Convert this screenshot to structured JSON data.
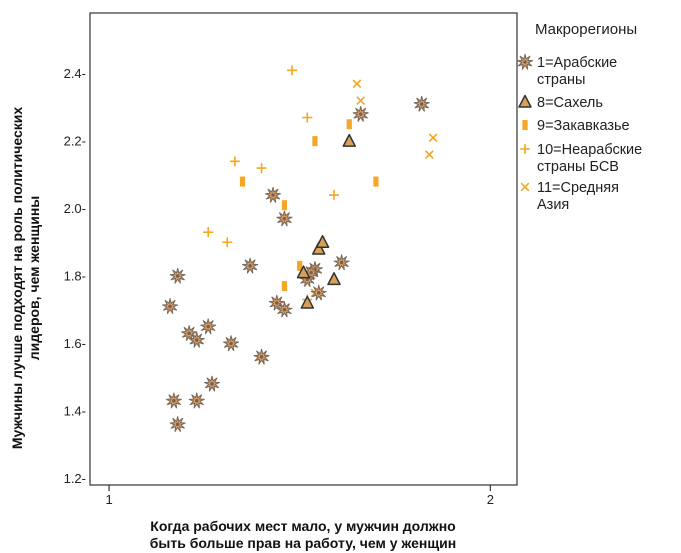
{
  "chart_data": {
    "type": "scatter",
    "title": "",
    "xlabel_lines": [
      "Когда рабочих мест мало, у мужчин должно",
      "быть больше прав на работу, чем у женщин"
    ],
    "ylabel_lines": [
      "Мужчины лучше подходят на роль политических",
      "лидеров, чем женщины"
    ],
    "xlim": [
      0.95,
      2.07
    ],
    "ylim": [
      1.18,
      2.58
    ],
    "xticks": [
      1,
      2
    ],
    "xtick_labels": [
      "1",
      "2"
    ],
    "yticks": [
      1.2,
      1.4,
      1.6,
      1.8,
      2.0,
      2.2,
      2.4
    ],
    "ytick_labels": [
      "1.2-",
      "1.4-",
      "1.6-",
      "1.8-",
      "2.0-",
      "2.2-",
      "2.4-"
    ],
    "grid": false,
    "legend": {
      "title": "Макрорегионы",
      "position": "right",
      "items": [
        {
          "series": 0,
          "lines": [
            "1=Арабские",
            "страны"
          ]
        },
        {
          "series": 1,
          "lines": [
            "8=Сахель"
          ]
        },
        {
          "series": 2,
          "lines": [
            "9=Закавказье"
          ]
        },
        {
          "series": 3,
          "lines": [
            "10=Неарабские",
            "страны БСВ"
          ]
        },
        {
          "series": 4,
          "lines": [
            "11=Средняя",
            "Азия"
          ]
        }
      ]
    },
    "colors": {
      "arab_fill": "#e8a060",
      "arab_stroke": "#7a6a5a",
      "sahel_fill": "#d9a05a",
      "sahel_stroke": "#333333",
      "orange": "#f5a623",
      "axis": "#333333"
    },
    "series": [
      {
        "name": "1=Арабские страны",
        "marker": "star",
        "points": [
          [
            1.18,
            1.36
          ],
          [
            1.17,
            1.43
          ],
          [
            1.23,
            1.43
          ],
          [
            1.27,
            1.48
          ],
          [
            1.16,
            1.71
          ],
          [
            1.21,
            1.63
          ],
          [
            1.23,
            1.61
          ],
          [
            1.26,
            1.65
          ],
          [
            1.32,
            1.6
          ],
          [
            1.4,
            1.56
          ],
          [
            1.18,
            1.8
          ],
          [
            1.37,
            1.83
          ],
          [
            1.44,
            1.72
          ],
          [
            1.46,
            1.7
          ],
          [
            1.43,
            2.04
          ],
          [
            1.46,
            1.97
          ],
          [
            1.52,
            1.79
          ],
          [
            1.54,
            1.82
          ],
          [
            1.53,
            1.81
          ],
          [
            1.55,
            1.75
          ],
          [
            1.61,
            1.84
          ],
          [
            1.66,
            2.28
          ],
          [
            1.82,
            2.31
          ]
        ]
      },
      {
        "name": "8=Сахель",
        "marker": "triangle",
        "points": [
          [
            1.55,
            1.88
          ],
          [
            1.56,
            1.9
          ],
          [
            1.63,
            2.2
          ],
          [
            1.59,
            1.79
          ],
          [
            1.51,
            1.81
          ],
          [
            1.52,
            1.72
          ]
        ]
      },
      {
        "name": "9=Закавказье",
        "marker": "bar",
        "points": [
          [
            1.35,
            2.08
          ],
          [
            1.46,
            2.01
          ],
          [
            1.54,
            2.2
          ],
          [
            1.63,
            2.25
          ],
          [
            1.7,
            2.08
          ],
          [
            1.46,
            1.77
          ],
          [
            1.5,
            1.83
          ]
        ]
      },
      {
        "name": "10=Неарабские страны БСВ",
        "marker": "plus",
        "points": [
          [
            1.48,
            2.41
          ],
          [
            1.52,
            2.27
          ],
          [
            1.33,
            2.14
          ],
          [
            1.4,
            2.12
          ],
          [
            1.59,
            2.04
          ],
          [
            1.26,
            1.93
          ],
          [
            1.31,
            1.9
          ],
          [
            1.52,
            1.73
          ]
        ]
      },
      {
        "name": "11=Средняя Азия",
        "marker": "x",
        "points": [
          [
            1.65,
            2.37
          ],
          [
            1.66,
            2.32
          ],
          [
            1.85,
            2.21
          ],
          [
            1.84,
            2.16
          ],
          [
            1.54,
            1.75
          ]
        ]
      }
    ]
  }
}
